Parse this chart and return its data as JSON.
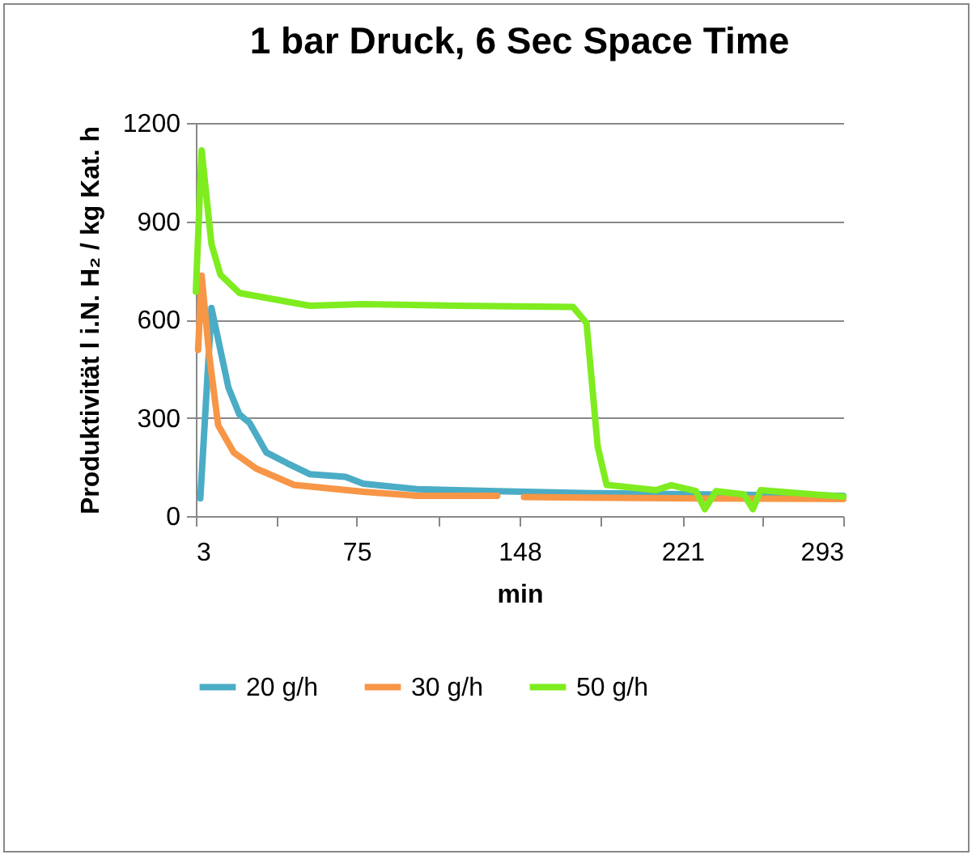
{
  "chart_data": {
    "type": "line",
    "title": "1 bar Druck, 6 Sec Space Time",
    "xlabel": "min",
    "ylabel": "Produktivität  l i.N. H₂ / kg Kat. h",
    "xlim": [
      3,
      293
    ],
    "xticks": [
      3,
      {
        "value": 39,
        "label": null
      },
      75,
      {
        "value": 112,
        "label": null
      },
      148,
      {
        "value": 184,
        "label": null
      },
      221,
      {
        "value": 257,
        "label": null
      },
      293
    ],
    "ylim": [
      0,
      1200
    ],
    "yticks": [
      0,
      300,
      600,
      900,
      1200
    ],
    "grid": "y",
    "legend": "bottom",
    "marker": "none",
    "line_style": "solid",
    "series": [
      {
        "name": "20 g/h",
        "color": "#4bacc6",
        "x": [
          5,
          10,
          17.6,
          22.5,
          27,
          34.6,
          44,
          54,
          70,
          78,
          102,
          138,
          180,
          230,
          293
        ],
        "values": [
          54,
          635,
          392,
          310,
          285,
          194,
          161,
          128,
          120,
          99,
          82,
          76,
          70,
          66,
          62
        ]
      },
      {
        "name": "30 g/h",
        "color": "#f79646",
        "x": [
          4,
          5.6,
          9,
          13,
          20,
          30,
          47,
          78,
          102,
          138,
          146,
          150,
          180,
          230,
          293
        ],
        "values": [
          507,
          734,
          490,
          277,
          194,
          145,
          95,
          74,
          62,
          62,
          null,
          58,
          56,
          54,
          52
        ]
      },
      {
        "name": "50 g/h",
        "color": "#7fec1f",
        "x": [
          3,
          5.6,
          10,
          14,
          22.5,
          54,
          78,
          120,
          172,
          178,
          183,
          187,
          209,
          216,
          227,
          231,
          236,
          248.5,
          252.5,
          256,
          293
        ],
        "values": [
          685,
          1116,
          830,
          737,
          681,
          642,
          647,
          642,
          638,
          589,
          212,
          95,
          79,
          94,
          76,
          21,
          76,
          66,
          21,
          79,
          59
        ]
      }
    ]
  }
}
